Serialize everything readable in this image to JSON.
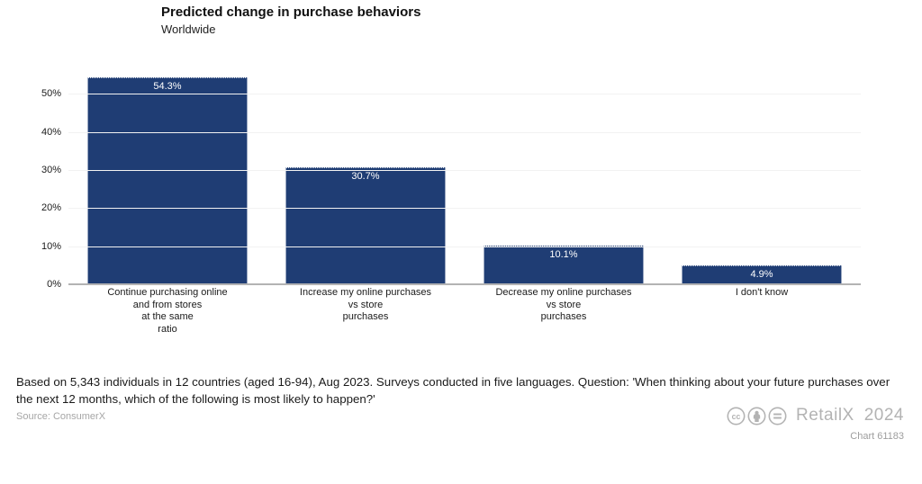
{
  "header": {
    "title": "Predicted change in purchase behaviors",
    "subtitle": "Worldwide"
  },
  "chart_data": {
    "type": "bar",
    "title": "Predicted change in purchase behaviors",
    "subtitle": "Worldwide",
    "categories": [
      [
        "Continue purchasing online",
        "and from stores",
        "at the same",
        "ratio"
      ],
      [
        "Increase my online purchases",
        "vs store",
        "purchases"
      ],
      [
        "Decrease my online purchases",
        "vs store",
        "purchases"
      ],
      [
        "I don't know"
      ]
    ],
    "values": [
      54.3,
      30.7,
      10.1,
      4.9
    ],
    "value_labels": [
      "54.3%",
      "30.7%",
      "10.1%",
      "4.9%"
    ],
    "xlabel": "",
    "ylabel": "",
    "ylim": [
      0,
      54.3
    ],
    "yticks": [
      0,
      10,
      20,
      30,
      40,
      50
    ],
    "ytick_labels": [
      "0%",
      "10%",
      "20%",
      "30%",
      "40%",
      "50%"
    ],
    "bar_color": "#1f3d74",
    "grid": true,
    "legend": "none"
  },
  "footer": {
    "note": "Based on 5,343 individuals in 12 countries (aged 16-94), Aug 2023. Surveys conducted in five languages. Question: 'When thinking about your future purchases over the next 12 months, which of the following is most likely to happen?'",
    "source": "Source: ConsumerX",
    "brand": "RetailX",
    "year": "2024",
    "chart_id": "Chart 61183",
    "license_icons": [
      "cc",
      "by",
      "nd"
    ],
    "brand_color": "#b3b3b3"
  }
}
